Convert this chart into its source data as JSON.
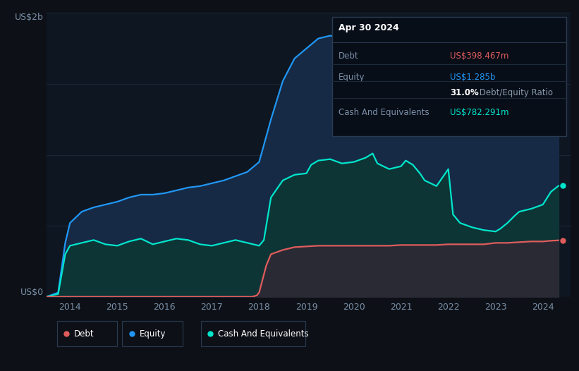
{
  "background_color": "#0d1117",
  "plot_bg_color": "#0e1621",
  "ylabel_top": "US$2b",
  "ylabel_bottom": "US$0",
  "xlim_start": 2013.5,
  "xlim_end": 2024.58,
  "ylim": [
    0,
    2.0
  ],
  "xtick_labels": [
    "2014",
    "2015",
    "2016",
    "2017",
    "2018",
    "2019",
    "2020",
    "2021",
    "2022",
    "2023",
    "2024"
  ],
  "xtick_values": [
    2014,
    2015,
    2016,
    2017,
    2018,
    2019,
    2020,
    2021,
    2022,
    2023,
    2024
  ],
  "grid_color": "#1c2b3a",
  "equity_color": "#2196f3",
  "equity_fill": "#162a45",
  "cash_color": "#00e5cc",
  "cash_fill": "#0d3535",
  "debt_color": "#e05c5c",
  "debt_fill": "#2a2a35",
  "tooltip_bg": "#080e18",
  "tooltip_border": "#2a3a50",
  "equity_years": [
    2013.5,
    2013.75,
    2013.9,
    2014.0,
    2014.25,
    2014.5,
    2014.75,
    2015.0,
    2015.25,
    2015.5,
    2015.75,
    2016.0,
    2016.25,
    2016.5,
    2016.75,
    2017.0,
    2017.25,
    2017.5,
    2017.75,
    2018.0,
    2018.25,
    2018.5,
    2018.75,
    2019.0,
    2019.25,
    2019.5,
    2019.75,
    2020.0,
    2020.25,
    2020.5,
    2020.75,
    2021.0,
    2021.1,
    2021.25,
    2021.5,
    2021.75,
    2022.0,
    2022.1,
    2022.25,
    2022.5,
    2022.75,
    2023.0,
    2023.25,
    2023.5,
    2023.75,
    2024.0,
    2024.17,
    2024.33
  ],
  "equity_values": [
    0.0,
    0.03,
    0.38,
    0.52,
    0.6,
    0.63,
    0.65,
    0.67,
    0.7,
    0.72,
    0.72,
    0.73,
    0.75,
    0.77,
    0.78,
    0.8,
    0.82,
    0.85,
    0.88,
    0.95,
    1.25,
    1.52,
    1.68,
    1.75,
    1.82,
    1.84,
    1.83,
    1.86,
    1.88,
    1.87,
    1.86,
    1.89,
    1.93,
    1.94,
    1.92,
    1.88,
    1.84,
    1.58,
    1.47,
    1.34,
    1.27,
    1.24,
    1.23,
    1.25,
    1.22,
    1.21,
    1.25,
    1.285
  ],
  "cash_years": [
    2013.5,
    2013.75,
    2013.9,
    2014.0,
    2014.25,
    2014.5,
    2014.75,
    2015.0,
    2015.25,
    2015.5,
    2015.75,
    2016.0,
    2016.25,
    2016.5,
    2016.75,
    2017.0,
    2017.25,
    2017.5,
    2017.75,
    2018.0,
    2018.1,
    2018.25,
    2018.5,
    2018.75,
    2019.0,
    2019.1,
    2019.25,
    2019.5,
    2019.75,
    2020.0,
    2020.25,
    2020.4,
    2020.5,
    2020.75,
    2021.0,
    2021.1,
    2021.25,
    2021.4,
    2021.5,
    2021.75,
    2022.0,
    2022.1,
    2022.25,
    2022.5,
    2022.75,
    2023.0,
    2023.1,
    2023.25,
    2023.4,
    2023.5,
    2023.75,
    2024.0,
    2024.17,
    2024.33
  ],
  "cash_values": [
    0.0,
    0.02,
    0.3,
    0.36,
    0.38,
    0.4,
    0.37,
    0.36,
    0.39,
    0.41,
    0.37,
    0.39,
    0.41,
    0.4,
    0.37,
    0.36,
    0.38,
    0.4,
    0.38,
    0.36,
    0.4,
    0.7,
    0.82,
    0.86,
    0.87,
    0.93,
    0.96,
    0.97,
    0.94,
    0.95,
    0.98,
    1.01,
    0.94,
    0.9,
    0.92,
    0.96,
    0.93,
    0.87,
    0.82,
    0.78,
    0.9,
    0.58,
    0.52,
    0.49,
    0.47,
    0.46,
    0.48,
    0.52,
    0.57,
    0.6,
    0.62,
    0.65,
    0.74,
    0.782
  ],
  "debt_years": [
    2013.5,
    2014.0,
    2014.5,
    2015.0,
    2015.5,
    2016.0,
    2016.5,
    2017.0,
    2017.5,
    2017.85,
    2017.95,
    2018.0,
    2018.15,
    2018.25,
    2018.5,
    2018.75,
    2019.0,
    2019.25,
    2019.5,
    2019.75,
    2020.0,
    2020.25,
    2020.5,
    2020.75,
    2021.0,
    2021.25,
    2021.5,
    2021.75,
    2022.0,
    2022.25,
    2022.5,
    2022.75,
    2023.0,
    2023.25,
    2023.5,
    2023.75,
    2024.0,
    2024.17,
    2024.33
  ],
  "debt_values": [
    0.0,
    0.0,
    0.0,
    0.0,
    0.0,
    0.0,
    0.0,
    0.0,
    0.0,
    0.0,
    0.01,
    0.03,
    0.22,
    0.3,
    0.33,
    0.35,
    0.355,
    0.36,
    0.36,
    0.36,
    0.36,
    0.36,
    0.36,
    0.36,
    0.365,
    0.365,
    0.365,
    0.365,
    0.37,
    0.37,
    0.37,
    0.37,
    0.38,
    0.38,
    0.385,
    0.39,
    0.39,
    0.395,
    0.398
  ],
  "legend_items": [
    {
      "label": "Debt",
      "color": "#e05c5c"
    },
    {
      "label": "Equity",
      "color": "#2196f3"
    },
    {
      "label": "Cash And Equivalents",
      "color": "#00e5cc"
    }
  ],
  "tooltip": {
    "title": "Apr 30 2024",
    "rows": [
      {
        "label": "Debt",
        "value": "US$398.467m",
        "value_color": "#e05c5c"
      },
      {
        "label": "Equity",
        "value": "US$1.285b",
        "value_color": "#2196f3"
      },
      {
        "label": "",
        "value": "31.0%",
        "value_color": "#ffffff",
        "extra": " Debt/Equity Ratio",
        "extra_color": "#8899aa"
      },
      {
        "label": "Cash And Equivalents",
        "value": "US$782.291m",
        "value_color": "#00e5cc"
      }
    ]
  },
  "dot_x": 2024.42,
  "equity_dot_y": 1.285,
  "cash_dot_y": 0.782,
  "debt_dot_y": 0.398
}
